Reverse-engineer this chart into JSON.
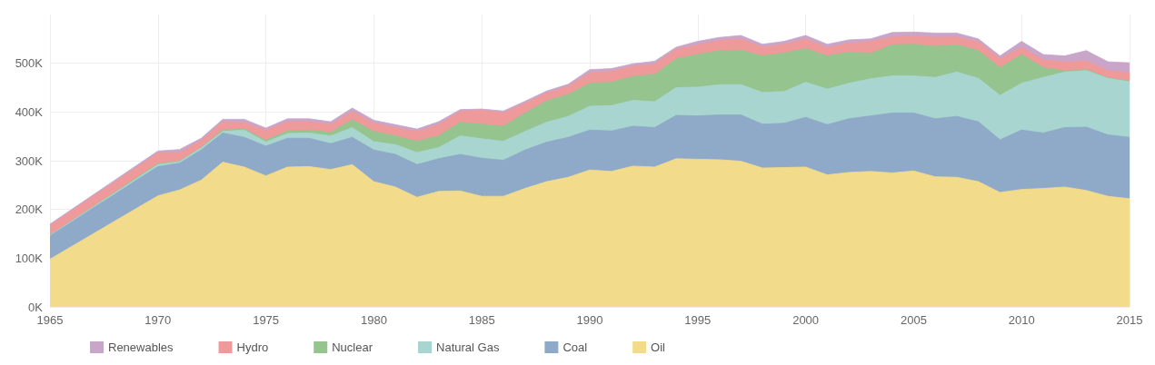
{
  "chart_data": {
    "type": "area",
    "stacked": true,
    "x": [
      1965,
      1966,
      1967,
      1968,
      1969,
      1970,
      1971,
      1972,
      1973,
      1974,
      1975,
      1976,
      1977,
      1978,
      1979,
      1980,
      1981,
      1982,
      1983,
      1984,
      1985,
      1986,
      1987,
      1988,
      1989,
      1990,
      1991,
      1992,
      1993,
      1994,
      1995,
      1996,
      1997,
      1998,
      1999,
      2000,
      2001,
      2002,
      2003,
      2004,
      2005,
      2006,
      2007,
      2008,
      2009,
      2010,
      2011,
      2012,
      2013,
      2014,
      2015
    ],
    "series": [
      {
        "name": "Oil",
        "color": "#f2dc8c",
        "values": [
          98000,
          124000,
          150000,
          176000,
          202000,
          228000,
          240000,
          260000,
          297000,
          287000,
          269000,
          287000,
          288000,
          282000,
          292000,
          257000,
          246000,
          225000,
          237000,
          238000,
          227000,
          227000,
          243000,
          257000,
          266000,
          281000,
          278000,
          289000,
          287000,
          304000,
          303000,
          302000,
          299000,
          285000,
          286000,
          287000,
          271000,
          276000,
          278000,
          275000,
          279000,
          267000,
          266000,
          257000,
          235000,
          241000,
          243000,
          246000,
          239000,
          227000,
          222000
        ]
      },
      {
        "name": "Coal",
        "color": "#8fa9c8",
        "values": [
          48000,
          50000,
          53000,
          55000,
          58000,
          60000,
          55000,
          62000,
          60000,
          61000,
          61000,
          59000,
          58000,
          53000,
          56000,
          65000,
          67000,
          67000,
          67000,
          75000,
          78000,
          74000,
          79000,
          81000,
          82000,
          82000,
          83000,
          82000,
          81000,
          89000,
          89000,
          92000,
          95000,
          90000,
          91000,
          102000,
          103000,
          110000,
          114000,
          123000,
          119000,
          119000,
          125000,
          123000,
          108000,
          122000,
          114000,
          122000,
          130000,
          126000,
          126000
        ]
      },
      {
        "name": "Natural Gas",
        "color": "#a8d5d0",
        "values": [
          1000,
          2000,
          2000,
          3000,
          3000,
          4000,
          3000,
          4000,
          3000,
          15000,
          8000,
          10000,
          11000,
          16000,
          20000,
          17000,
          20000,
          25000,
          23000,
          38000,
          40000,
          39000,
          38000,
          41000,
          43000,
          49000,
          52000,
          53000,
          53000,
          57000,
          59000,
          62000,
          62000,
          65000,
          65000,
          72000,
          73000,
          73000,
          76000,
          76000,
          76000,
          85000,
          91000,
          89000,
          91000,
          96000,
          114000,
          114000,
          116000,
          116000,
          114000
        ]
      },
      {
        "name": "Nuclear",
        "color": "#96c48e",
        "values": [
          0,
          0,
          1000,
          1000,
          2000,
          2000,
          1000,
          1000,
          3000,
          2000,
          4000,
          5000,
          6000,
          7000,
          16000,
          21000,
          18000,
          23000,
          24000,
          28000,
          30000,
          31000,
          38000,
          44000,
          45000,
          47000,
          48000,
          49000,
          56000,
          59000,
          67000,
          70000,
          71000,
          75000,
          79000,
          69000,
          68000,
          64000,
          52000,
          64000,
          65000,
          64000,
          56000,
          57000,
          57000,
          59000,
          20000,
          2000,
          2000,
          1000,
          1000
        ]
      },
      {
        "name": "Hydro",
        "color": "#ee9a9a",
        "values": [
          20000,
          21000,
          21000,
          21000,
          21000,
          22000,
          17000,
          15000,
          17000,
          13000,
          21000,
          19000,
          17000,
          16000,
          17000,
          17000,
          17000,
          20000,
          23000,
          22000,
          29000,
          27000,
          20000,
          16000,
          17000,
          21000,
          23000,
          21000,
          21000,
          20000,
          20000,
          21000,
          23000,
          18000,
          18000,
          20000,
          17000,
          18000,
          25000,
          16000,
          17000,
          18000,
          16000,
          18000,
          18000,
          15000,
          16000,
          19000,
          18000,
          15000,
          18000
        ]
      },
      {
        "name": "Renewables",
        "color": "#c9a6c9",
        "values": [
          3000,
          3000,
          3000,
          4000,
          4000,
          4000,
          7000,
          4000,
          5000,
          7000,
          4000,
          6000,
          6000,
          6000,
          7000,
          6000,
          6000,
          5000,
          6000,
          4000,
          2000,
          4000,
          4000,
          4000,
          4000,
          7000,
          5000,
          5000,
          6000,
          4000,
          7000,
          6000,
          7000,
          6000,
          6000,
          7000,
          7000,
          7000,
          5000,
          9000,
          8000,
          9000,
          8000,
          6000,
          6000,
          12000,
          11000,
          12000,
          21000,
          18000,
          20000
        ]
      }
    ],
    "xlim": [
      1965,
      2015
    ],
    "xticks": [
      1965,
      1970,
      1975,
      1980,
      1985,
      1990,
      1995,
      2000,
      2005,
      2010,
      2015
    ],
    "ylim": [
      0,
      600000
    ],
    "yticks": [
      {
        "value": 0,
        "label": "0K"
      },
      {
        "value": 100000,
        "label": "100K"
      },
      {
        "value": 200000,
        "label": "200K"
      },
      {
        "value": 300000,
        "label": "300K"
      },
      {
        "value": 400000,
        "label": "400K"
      },
      {
        "value": 500000,
        "label": "500K"
      }
    ],
    "grid": true,
    "legend": "bottom"
  }
}
